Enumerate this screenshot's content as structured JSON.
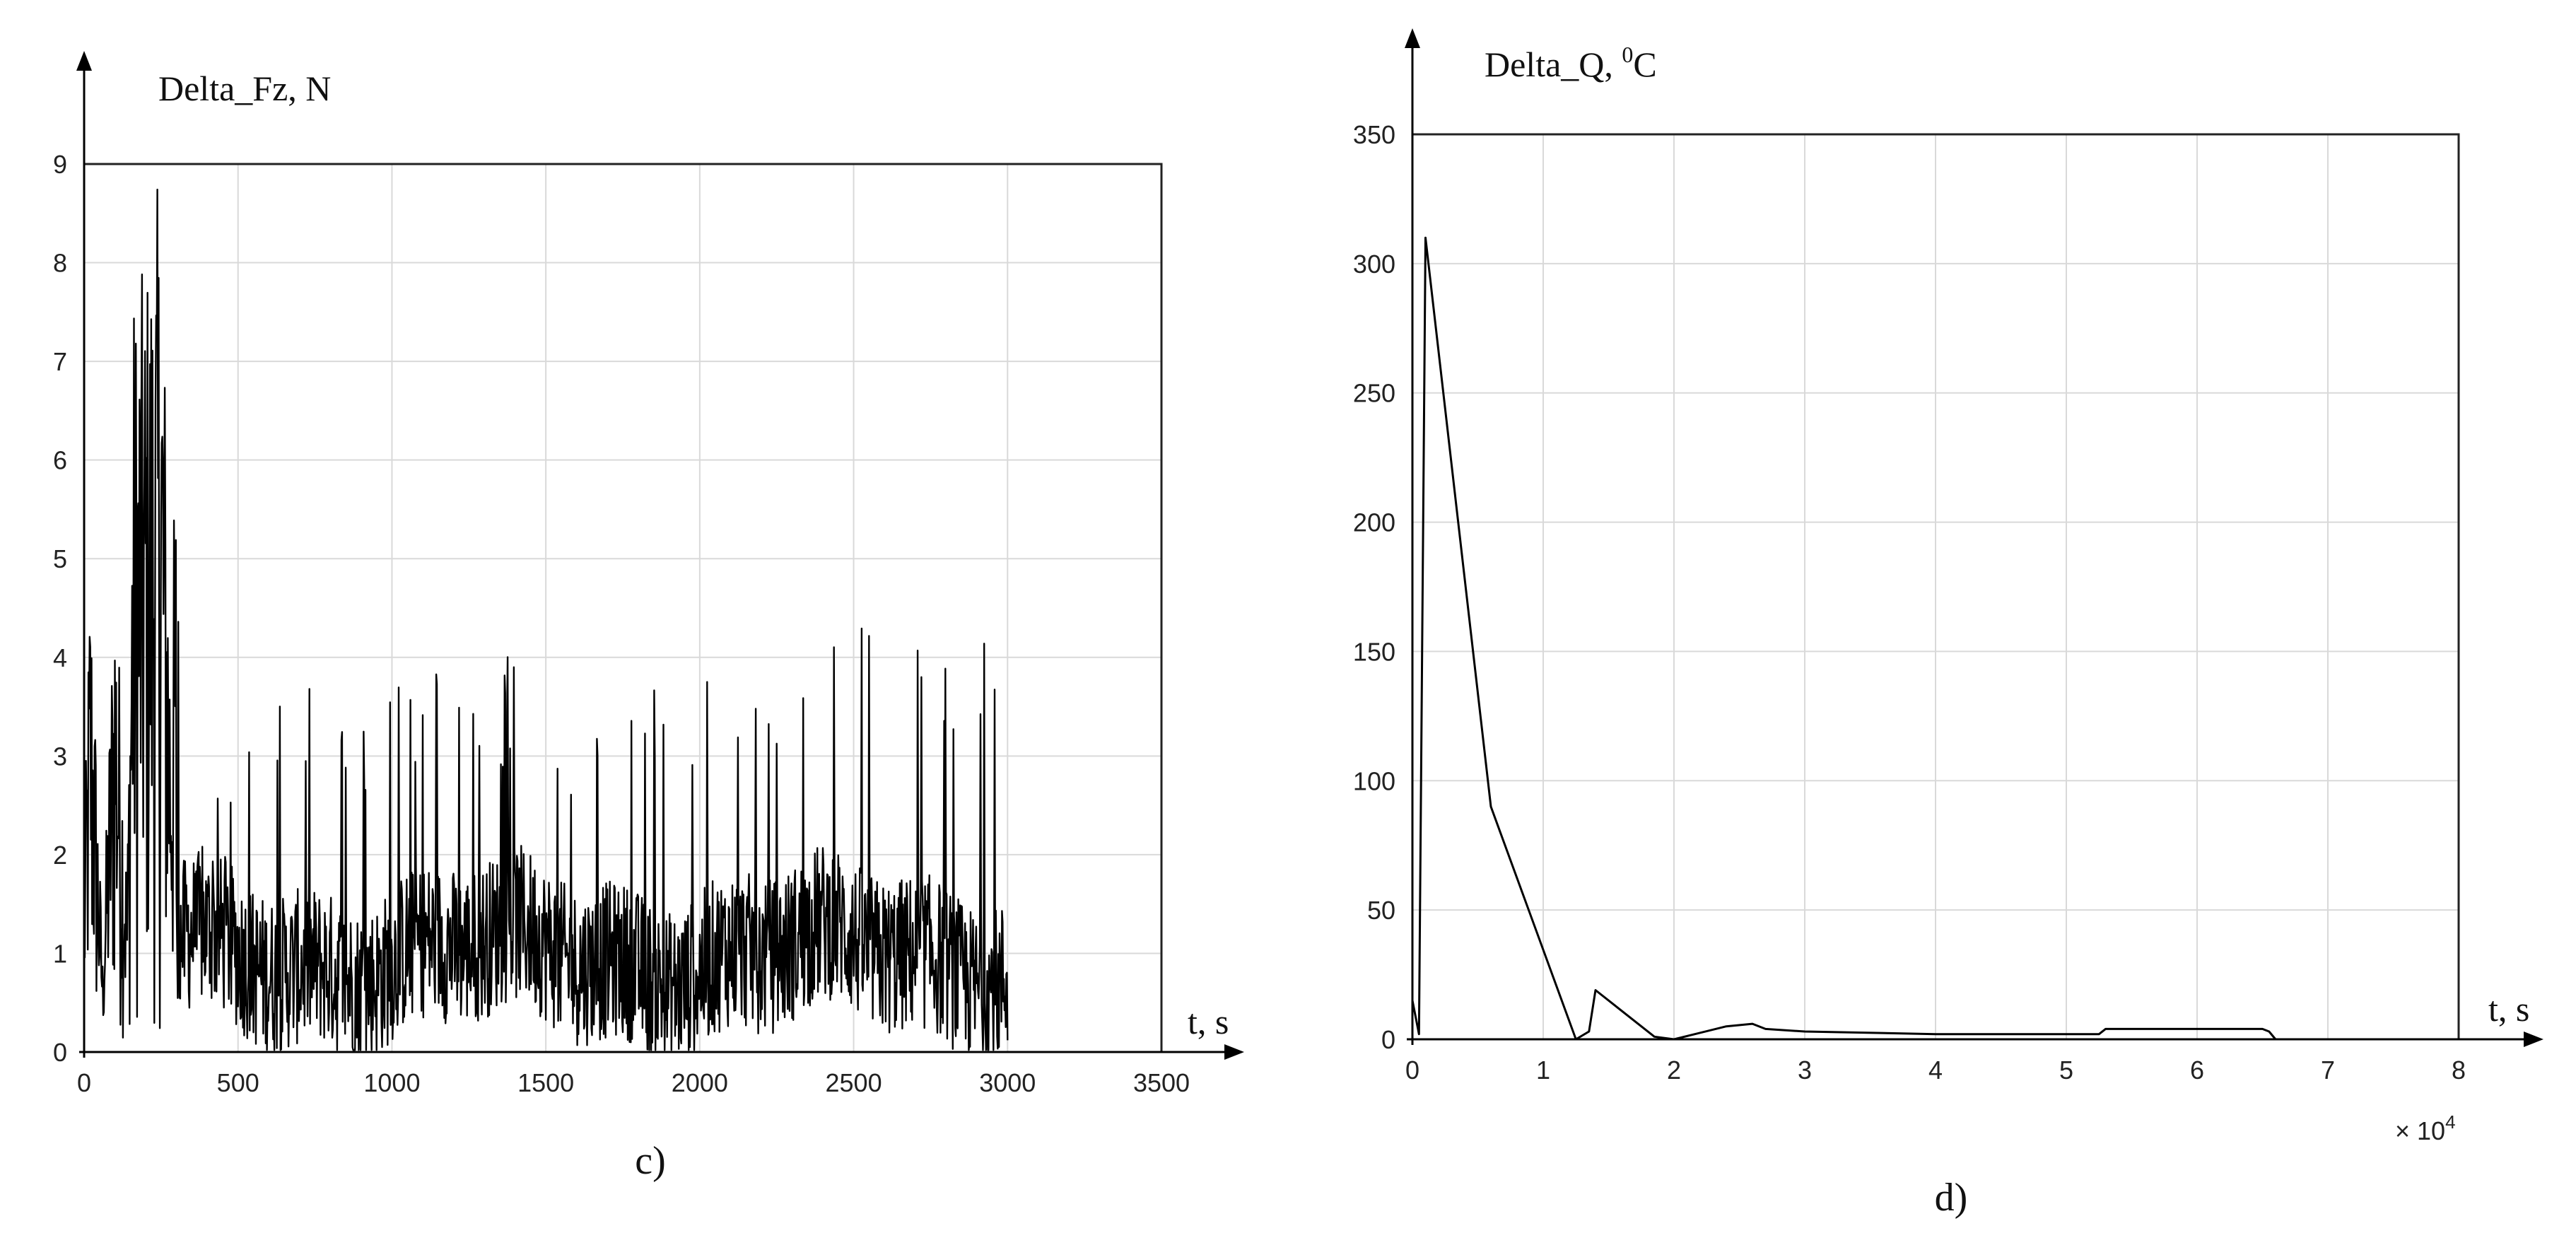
{
  "chart_data": [
    {
      "type": "line",
      "panel_label": "c)",
      "title": "Delta_Fz, N",
      "xlabel": "t, s",
      "ylabel": "",
      "xlim": [
        0,
        3500
      ],
      "ylim": [
        0,
        9
      ],
      "xticks": [
        0,
        500,
        1000,
        1500,
        2000,
        2500,
        3000,
        3500
      ],
      "yticks": [
        0,
        1,
        2,
        3,
        4,
        5,
        6,
        7,
        8,
        9
      ],
      "grid": true,
      "color": "#000000",
      "series": [
        {
          "x_range": [
            0,
            3000
          ],
          "samples": 1500,
          "points": [
            [
              0,
              2.0
            ],
            [
              20,
              5.2
            ],
            [
              60,
              1.0
            ],
            [
              100,
              5.3
            ],
            [
              140,
              1.8
            ],
            [
              160,
              7.7
            ],
            [
              200,
              8.0
            ],
            [
              235,
              8.7
            ],
            [
              250,
              9.0
            ],
            [
              280,
              4.5
            ],
            [
              300,
              6.2
            ],
            [
              320,
              2.0
            ],
            [
              420,
              2.5
            ],
            [
              640,
              3.7
            ],
            [
              1000,
              3.8
            ],
            [
              1400,
              4.1
            ],
            [
              1600,
              3.4
            ],
            [
              1800,
              3.5
            ],
            [
              2000,
              4.2
            ],
            [
              2500,
              4.5
            ],
            [
              2700,
              4.1
            ],
            [
              2950,
              4.8
            ],
            [
              2980,
              2.9
            ],
            [
              3000,
              1.5
            ]
          ],
          "min_envelope": [
            [
              0,
              0.1
            ],
            [
              300,
              0.1
            ],
            [
              330,
              0.3
            ],
            [
              3000,
              0.3
            ]
          ]
        }
      ]
    },
    {
      "type": "line",
      "panel_label": "d)",
      "title": "Delta_Q, ",
      "title_superscript": "0",
      "title_unit": "C",
      "xlabel": "t, s",
      "ylabel": "",
      "x_multiplier": "× 10",
      "x_multiplier_exp": "4",
      "xlim": [
        0,
        8
      ],
      "ylim": [
        0,
        350
      ],
      "xticks": [
        0,
        1,
        2,
        3,
        4,
        5,
        6,
        7,
        8
      ],
      "yticks": [
        0,
        50,
        100,
        150,
        200,
        250,
        300,
        350
      ],
      "grid": true,
      "color": "#000000",
      "series": [
        {
          "x": [
            0,
            0.05,
            0.1,
            0.6,
            1.25,
            1.35,
            1.4,
            1.85,
            2.0,
            2.4,
            2.6,
            2.7,
            3.0,
            4.0,
            5.25,
            5.3,
            6.5,
            6.55,
            6.6,
            8.0
          ],
          "y": [
            15,
            2,
            310,
            90,
            0,
            3,
            19,
            1,
            0,
            5,
            6,
            4,
            3,
            2,
            2,
            4,
            4,
            3,
            0,
            0
          ]
        }
      ]
    }
  ]
}
